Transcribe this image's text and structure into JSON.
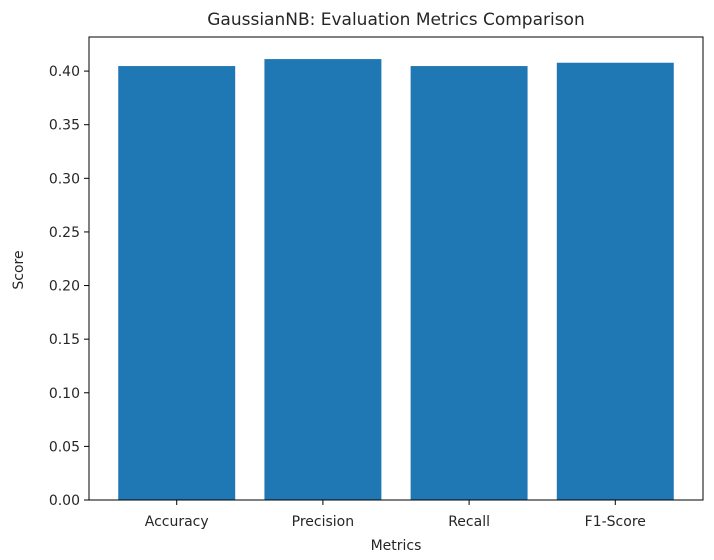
{
  "chart_data": {
    "type": "bar",
    "title": "GaussianNB: Evaluation Metrics Comparison",
    "xlabel": "Metrics",
    "ylabel": "Score",
    "categories": [
      "Accuracy",
      "Precision",
      "Recall",
      "F1-Score"
    ],
    "values": [
      0.4047,
      0.4112,
      0.4047,
      0.4078
    ],
    "ylim": [
      0,
      0.4318
    ],
    "yticks": [
      "0.00",
      "0.05",
      "0.10",
      "0.15",
      "0.20",
      "0.25",
      "0.30",
      "0.35",
      "0.40"
    ],
    "grid": false,
    "bar_color": "#1f77b4"
  }
}
